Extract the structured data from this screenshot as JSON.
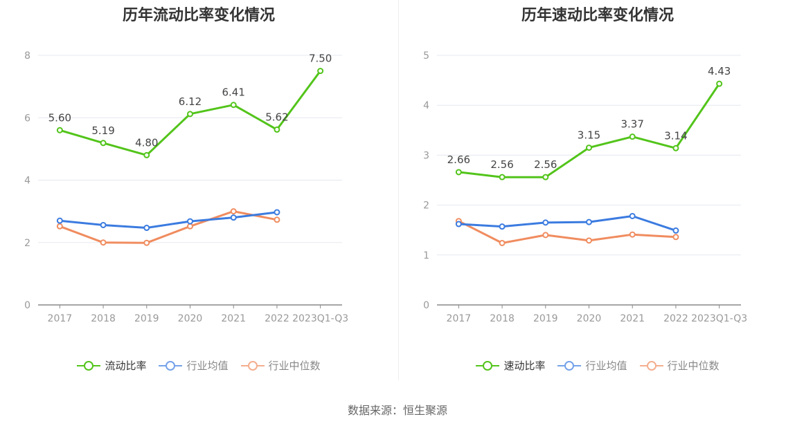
{
  "source": "数据来源：恒生聚源",
  "colors": {
    "primary": "#52c41a",
    "avg": "#3b7be0",
    "median": "#f08c5f",
    "grid": "#e6e8f0",
    "axis": "#888888"
  },
  "chart_data": [
    {
      "type": "line",
      "title": "历年流动比率变化情况",
      "categories": [
        "2017",
        "2018",
        "2019",
        "2020",
        "2021",
        "2022",
        "2023Q1-Q3"
      ],
      "ylim": [
        0,
        8
      ],
      "yticks": [
        "0",
        "2",
        "4",
        "6",
        "8"
      ],
      "grid": true,
      "legend_position": "bottom",
      "series": [
        {
          "name": "流动比率",
          "values": [
            5.6,
            5.19,
            4.8,
            6.12,
            6.41,
            5.62,
            7.5
          ],
          "labels": [
            "5.60",
            "5.19",
            "4.80",
            "6.12",
            "6.41",
            "5.62",
            "7.50"
          ]
        },
        {
          "name": "行业均值",
          "values": [
            2.7,
            2.56,
            2.47,
            2.68,
            2.8,
            2.97,
            null
          ]
        },
        {
          "name": "行业中位数",
          "values": [
            2.52,
            2.0,
            1.99,
            2.52,
            3.0,
            2.73,
            null
          ]
        }
      ]
    },
    {
      "type": "line",
      "title": "历年速动比率变化情况",
      "categories": [
        "2017",
        "2018",
        "2019",
        "2020",
        "2021",
        "2022",
        "2023Q1-Q3"
      ],
      "ylim": [
        0,
        5
      ],
      "yticks": [
        "0",
        "1",
        "2",
        "3",
        "4",
        "5"
      ],
      "grid": true,
      "legend_position": "bottom",
      "series": [
        {
          "name": "速动比率",
          "values": [
            2.66,
            2.56,
            2.56,
            3.15,
            3.37,
            3.14,
            4.43
          ],
          "labels": [
            "2.66",
            "2.56",
            "2.56",
            "3.15",
            "3.37",
            "3.14",
            "4.43"
          ]
        },
        {
          "name": "行业均值",
          "values": [
            1.62,
            1.57,
            1.65,
            1.66,
            1.78,
            1.49,
            null
          ]
        },
        {
          "name": "行业中位数",
          "values": [
            1.68,
            1.24,
            1.4,
            1.29,
            1.41,
            1.36,
            null
          ]
        }
      ]
    }
  ]
}
